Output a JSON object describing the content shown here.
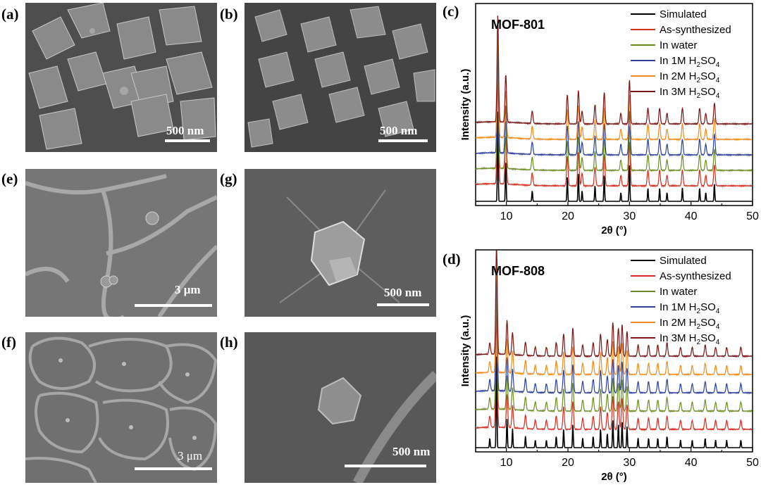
{
  "figure": {
    "panels": {
      "a": {
        "label": "(a)",
        "scale": "500 nm"
      },
      "b": {
        "label": "(b)",
        "scale": "500 nm"
      },
      "e": {
        "label": "(e)",
        "scale": "3 μm"
      },
      "g": {
        "label": "(g)",
        "scale": "500 nm"
      },
      "f": {
        "label": "(f)",
        "scale": "3 μm"
      },
      "h": {
        "label": "(h)",
        "scale": "500 nm"
      },
      "c": {
        "label": "(c)"
      },
      "d": {
        "label": "(d)"
      }
    }
  },
  "chart_data": [
    {
      "type": "line",
      "panel": "(c)",
      "title": "MOF-801",
      "xlabel": "2θ (°)",
      "ylabel": "Intensity (a.u.)",
      "xlim": [
        5,
        50
      ],
      "xticks": [
        10,
        20,
        30,
        40,
        50
      ],
      "legend_position": "top-right",
      "series": [
        {
          "name": "Simulated",
          "color": "#000000"
        },
        {
          "name": "As-synthesized",
          "color": "#d62d20"
        },
        {
          "name": "In water",
          "color": "#6b8e23"
        },
        {
          "name": "In 1M H2SO4",
          "color": "#2c3e9e"
        },
        {
          "name": "In 2M H2SO4",
          "color": "#f08c1e"
        },
        {
          "name": "In 3M H2SO4",
          "color": "#7b1414"
        }
      ],
      "peaks_2theta": [
        8.6,
        9.9,
        14.2,
        19.9,
        21.7,
        22.3,
        24.4,
        25.9,
        28.6,
        30.0,
        33.0,
        34.9,
        36.1,
        38.6,
        41.4,
        42.4,
        43.8
      ],
      "peak_heights": [
        1.0,
        0.45,
        0.12,
        0.28,
        0.32,
        0.12,
        0.18,
        0.3,
        0.1,
        0.42,
        0.15,
        0.15,
        0.1,
        0.15,
        0.15,
        0.1,
        0.2
      ]
    },
    {
      "type": "line",
      "panel": "(d)",
      "title": "MOF-808",
      "xlabel": "2θ (°)",
      "ylabel": "Intensity (a.u.)",
      "xlim": [
        5,
        50
      ],
      "xticks": [
        10,
        20,
        30,
        40,
        50
      ],
      "legend_position": "top-right",
      "series": [
        {
          "name": "Simulated",
          "color": "#000000"
        },
        {
          "name": "As-synthesized",
          "color": "#d62d20"
        },
        {
          "name": "In water",
          "color": "#6b8e23"
        },
        {
          "name": "In 1M H2SO4",
          "color": "#2c3e9e"
        },
        {
          "name": "In 2M H2SO4",
          "color": "#f08c1e"
        },
        {
          "name": "In 3M H2SO4",
          "color": "#7b1414"
        }
      ],
      "peaks_2theta": [
        7.3,
        8.4,
        10.1,
        11.0,
        13.1,
        14.7,
        16.5,
        18.1,
        19.3,
        20.8,
        22.4,
        24.1,
        25.3,
        26.4,
        27.3,
        28.2,
        28.8,
        29.6,
        31.4,
        33.1,
        34.6,
        36.1,
        38.3,
        40.2,
        42.3,
        44.0,
        45.8,
        48.1
      ],
      "peak_heights": [
        0.1,
        1.0,
        0.3,
        0.2,
        0.12,
        0.08,
        0.08,
        0.12,
        0.2,
        0.25,
        0.1,
        0.12,
        0.2,
        0.15,
        0.3,
        0.25,
        0.28,
        0.22,
        0.1,
        0.1,
        0.1,
        0.12,
        0.08,
        0.08,
        0.1,
        0.08,
        0.08,
        0.08
      ]
    }
  ]
}
